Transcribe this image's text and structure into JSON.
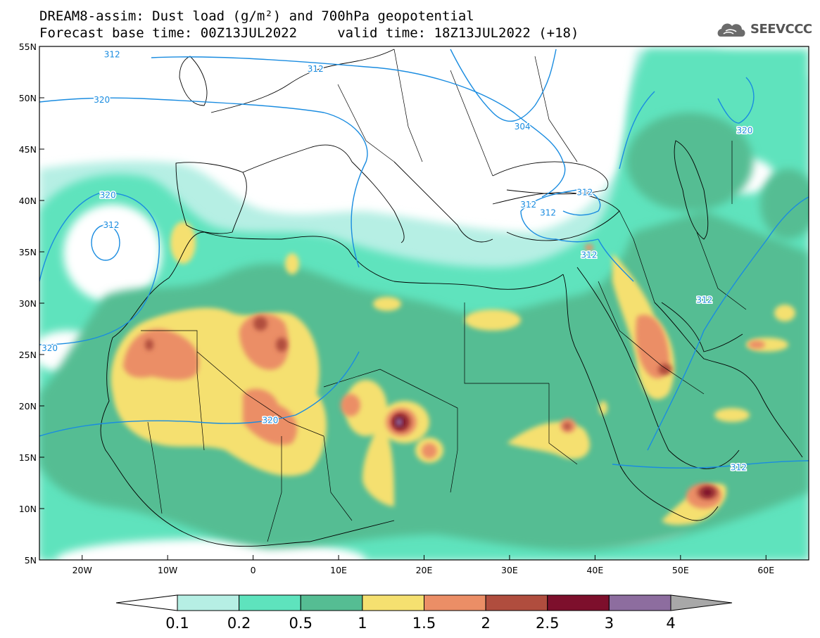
{
  "title_line1": "DREAM8-assim: Dust load (g/m²) and 700hPa geopotential",
  "title_line2": "Forecast base time: 00Z13JUL2022     valid time: 18Z13JUL2022 (+18)",
  "logo": {
    "text": "SEEVCCC",
    "icon": "cloud-logo-icon"
  },
  "map": {
    "lon_range": [
      -25,
      65
    ],
    "lat_range": [
      5,
      55
    ],
    "lon_ticks": [
      {
        "value": -20,
        "label": "20W"
      },
      {
        "value": -10,
        "label": "10W"
      },
      {
        "value": 0,
        "label": "0"
      },
      {
        "value": 10,
        "label": "10E"
      },
      {
        "value": 20,
        "label": "20E"
      },
      {
        "value": 30,
        "label": "30E"
      },
      {
        "value": 40,
        "label": "40E"
      },
      {
        "value": 50,
        "label": "50E"
      },
      {
        "value": 60,
        "label": "60E"
      }
    ],
    "lat_ticks": [
      {
        "value": 55,
        "label": "55N"
      },
      {
        "value": 50,
        "label": "50N"
      },
      {
        "value": 45,
        "label": "45N"
      },
      {
        "value": 40,
        "label": "40N"
      },
      {
        "value": 35,
        "label": "35N"
      },
      {
        "value": 30,
        "label": "30N"
      },
      {
        "value": 25,
        "label": "25N"
      },
      {
        "value": 20,
        "label": "20N"
      },
      {
        "value": 15,
        "label": "15N"
      },
      {
        "value": 10,
        "label": "10N"
      },
      {
        "value": 5,
        "label": "5N"
      }
    ],
    "contour_labels": [
      {
        "text": "312",
        "lon": -16.5,
        "lat": 54.2
      },
      {
        "text": "312",
        "lon": 7.3,
        "lat": 52.8
      },
      {
        "text": "320",
        "lon": -17.7,
        "lat": 49.8
      },
      {
        "text": "304",
        "lon": 31.5,
        "lat": 47.2
      },
      {
        "text": "320",
        "lon": 57.5,
        "lat": 46.8
      },
      {
        "text": "312",
        "lon": 38.8,
        "lat": 40.8
      },
      {
        "text": "312",
        "lon": 32.2,
        "lat": 39.6
      },
      {
        "text": "312",
        "lon": 34.5,
        "lat": 38.8
      },
      {
        "text": "320",
        "lon": -17.0,
        "lat": 40.5
      },
      {
        "text": "312",
        "lon": -16.6,
        "lat": 37.6
      },
      {
        "text": "312",
        "lon": 39.3,
        "lat": 34.7
      },
      {
        "text": "312",
        "lon": 52.8,
        "lat": 30.3
      },
      {
        "text": "320",
        "lon": -23.8,
        "lat": 25.6
      },
      {
        "text": "320",
        "lon": 2.0,
        "lat": 18.6
      },
      {
        "text": "312",
        "lon": 56.8,
        "lat": 14.0
      }
    ]
  },
  "colorbar": {
    "colors": [
      "#ffffff",
      "#b6efe4",
      "#5ee3bd",
      "#55bd93",
      "#f5e070",
      "#eb8e66",
      "#b04d3e",
      "#7d0f2c",
      "#8d6d9f",
      "#a8a8a8"
    ],
    "labels": [
      "0.1",
      "0.2",
      "0.5",
      "1",
      "1.5",
      "2",
      "2.5",
      "3",
      "4"
    ]
  }
}
